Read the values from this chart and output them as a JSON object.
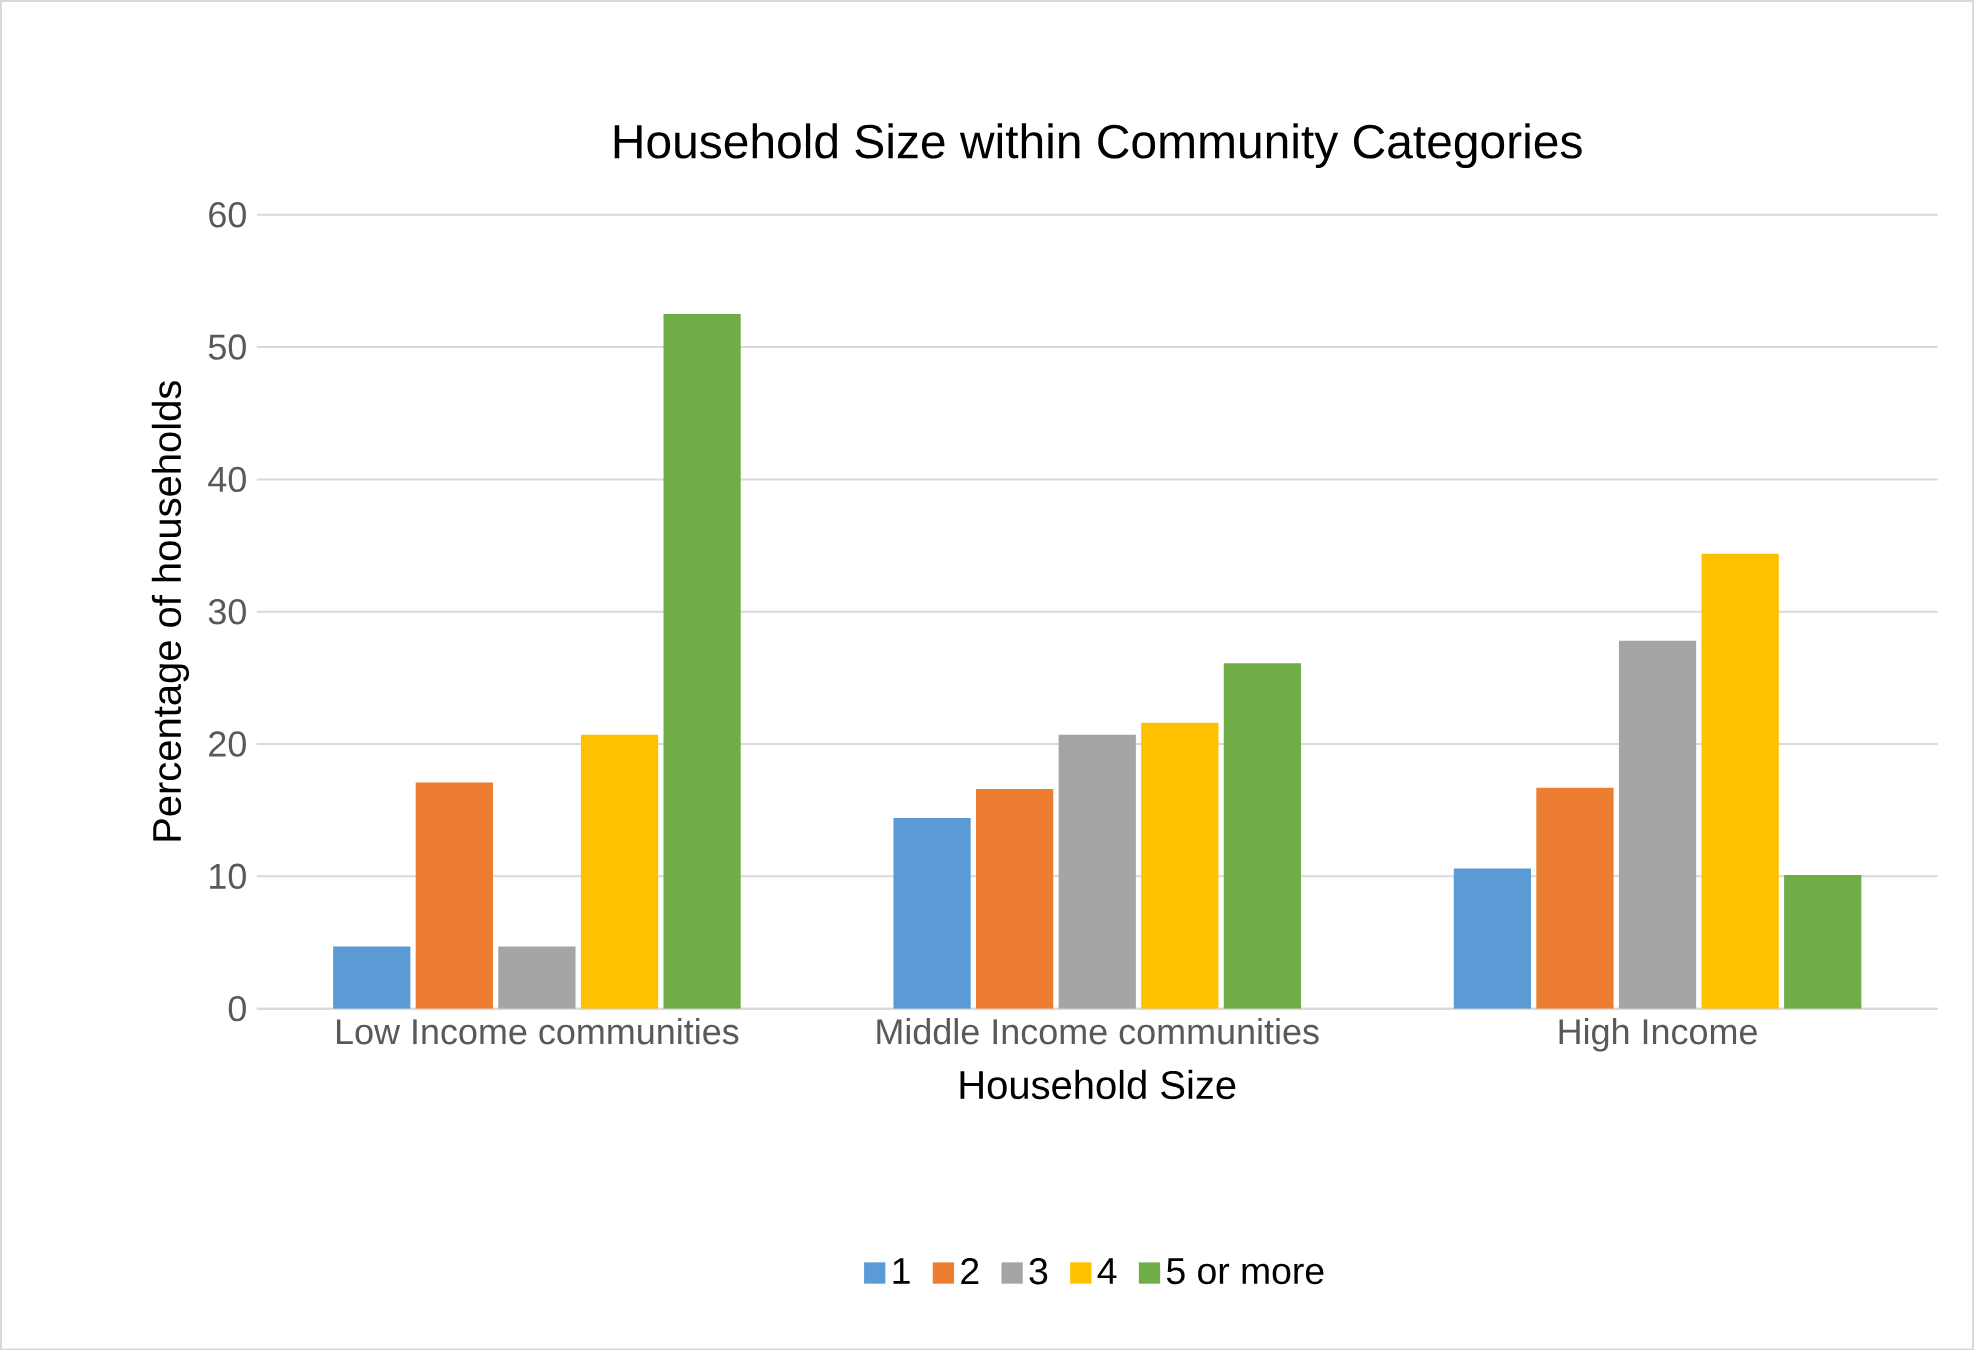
{
  "chart_data": {
    "type": "bar",
    "title": "Household Size within Community Categories",
    "xlabel": "Household Size",
    "ylabel": "Percentage of households",
    "categories": [
      "Low Income communities",
      "Middle Income communities",
      "High Income"
    ],
    "series": [
      {
        "name": "1",
        "color": "#5b9bd5",
        "values": [
          4.7,
          14.4,
          10.6
        ]
      },
      {
        "name": "2",
        "color": "#ed7d31",
        "values": [
          17.1,
          16.6,
          16.7
        ]
      },
      {
        "name": "3",
        "color": "#a5a5a5",
        "values": [
          4.7,
          20.7,
          27.8
        ]
      },
      {
        "name": "4",
        "color": "#ffc000",
        "values": [
          20.7,
          21.6,
          34.4
        ]
      },
      {
        "name": "5 or more",
        "color": "#70ad47",
        "values": [
          52.5,
          26.1,
          10.1
        ]
      }
    ],
    "ylim": [
      0,
      60
    ],
    "yticks": [
      0,
      10,
      20,
      30,
      40,
      50,
      60
    ],
    "grid": "y",
    "legend": "bottom"
  }
}
